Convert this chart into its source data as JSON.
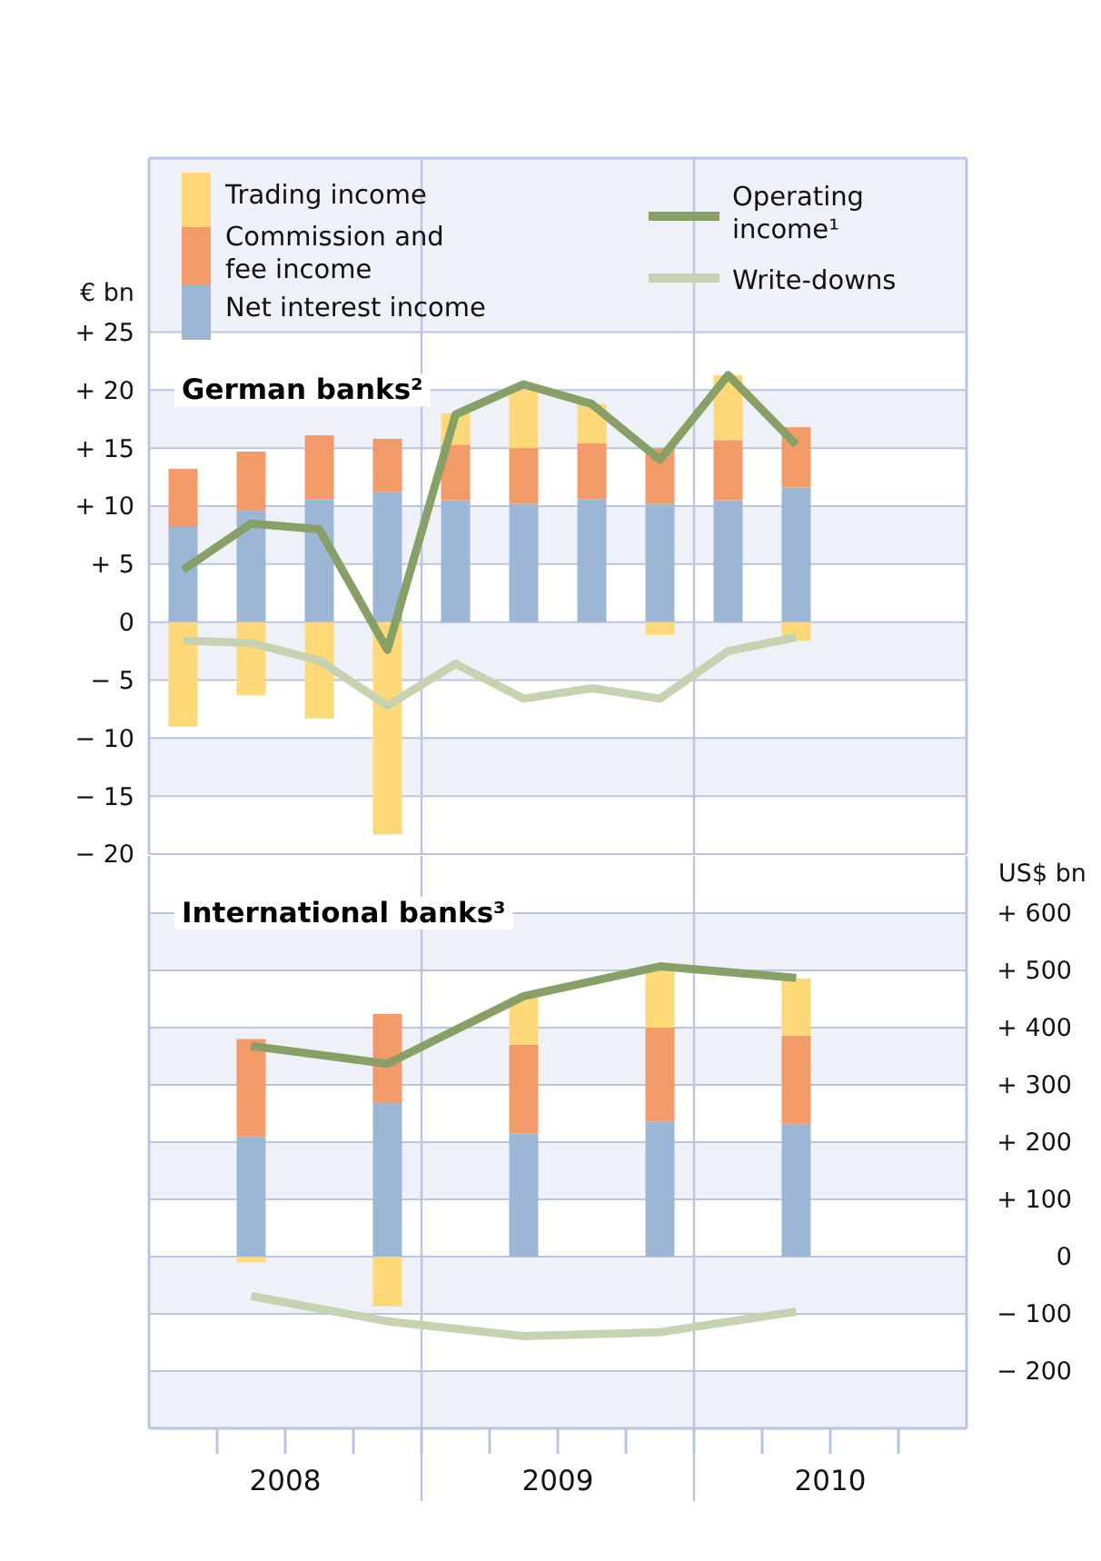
{
  "chart_data": [
    {
      "type": "bar",
      "title": "German banks²",
      "ylabel": "€ bn",
      "stacked": true,
      "legend": "top",
      "grid": "y",
      "tick_labels": "y",
      "xlim": [
        2008,
        2011
      ],
      "ylim": [
        -20,
        40
      ],
      "yticks": [
        {
          "value": -20,
          "label": "− 20"
        },
        {
          "value": -15,
          "label": "− 15"
        },
        {
          "value": -10,
          "label": "− 10"
        },
        {
          "value": -5,
          "label": "− 5"
        },
        0,
        {
          "value": 5,
          "label": "+ 5"
        },
        {
          "value": 10,
          "label": "+ 10"
        },
        {
          "value": 15,
          "label": "+ 15"
        },
        {
          "value": 20,
          "label": "+ 20"
        },
        {
          "value": 25,
          "label": "+ 25"
        }
      ],
      "x": [
        2008.125,
        2008.375,
        2008.625,
        2008.875,
        2009.125,
        2009.375,
        2009.625,
        2009.875,
        2010.125,
        2010.375
      ],
      "ref_lines": [
        {
          "axis": "x",
          "value": 2009,
          "label": null
        },
        {
          "axis": "x",
          "value": 2010,
          "label": null
        }
      ],
      "series": [
        {
          "name": "Net interest income",
          "color": "#9cb7d6",
          "values": [
            8.2,
            9.6,
            10.6,
            11.2,
            10.5,
            10.2,
            10.6,
            10.2,
            10.5,
            11.6
          ]
        },
        {
          "name": "Commission and fee income",
          "color": "#f29a68",
          "values": [
            5.0,
            5.1,
            5.5,
            4.6,
            4.8,
            4.8,
            4.8,
            4.8,
            5.2,
            5.2
          ]
        },
        {
          "name": "Trading income",
          "color": "#ffd978",
          "values": [
            -9.0,
            -6.3,
            -8.3,
            -18.3,
            2.7,
            5.0,
            3.4,
            -1.1,
            5.6,
            -1.6
          ]
        },
        {
          "name": "Operating income¹",
          "type": "line",
          "color": "#87a066",
          "values": [
            4.5,
            8.5,
            8.0,
            -2.4,
            17.9,
            20.5,
            18.8,
            14.0,
            21.3,
            15.3
          ]
        },
        {
          "name": "Write-downs",
          "type": "line",
          "color": "#c6d3b0",
          "values": [
            -1.6,
            -1.8,
            -3.3,
            -7.2,
            -3.6,
            -6.6,
            -5.7,
            -6.6,
            -2.5,
            -1.3
          ]
        }
      ]
    },
    {
      "type": "bar",
      "title": "International banks³",
      "ylabel": "US$ bn",
      "stacked": true,
      "grid": "y",
      "xlim": [
        2008,
        2011
      ],
      "xticks": [
        {
          "value": 2008.25,
          "label": null
        },
        {
          "value": 2008.5,
          "label": "2008"
        },
        {
          "value": 2008.75,
          "label": null
        },
        {
          "value": 2009,
          "label": null
        },
        {
          "value": 2009.25,
          "label": null
        },
        {
          "value": 2009.5,
          "label": "2009"
        },
        {
          "value": 2009.75,
          "label": null
        },
        {
          "value": 2010,
          "label": null
        },
        {
          "value": 2010.25,
          "label": null
        },
        {
          "value": 2010.5,
          "label": "2010"
        },
        {
          "value": 2010.75,
          "label": null
        }
      ],
      "ylim": [
        -300,
        700
      ],
      "yticks": [
        {
          "value": -200,
          "label": "− 200"
        },
        {
          "value": -100,
          "label": "− 100"
        },
        0,
        {
          "value": 100,
          "label": "+ 100"
        },
        {
          "value": 200,
          "label": "+ 200"
        },
        {
          "value": 300,
          "label": "+ 300"
        },
        {
          "value": 400,
          "label": "+ 400"
        },
        {
          "value": 500,
          "label": "+ 500"
        },
        {
          "value": 600,
          "label": "+ 600"
        }
      ],
      "x": [
        2008.375,
        2008.875,
        2009.375,
        2009.875,
        2010.375
      ],
      "ref_lines": [
        {
          "axis": "x",
          "value": 2009,
          "label": null
        },
        {
          "axis": "x",
          "value": 2010,
          "label": null
        }
      ],
      "series": [
        {
          "color": "#9cb7d6",
          "values": [
            210,
            268,
            215,
            236,
            232
          ]
        },
        {
          "color": "#f29a68",
          "values": [
            170,
            156,
            155,
            164,
            154
          ]
        },
        {
          "color": "#ffd978",
          "values": [
            -10,
            -87,
            83,
            104,
            100
          ]
        },
        {
          "type": "line",
          "color": "#87a066",
          "values": [
            368,
            337,
            455,
            507,
            487
          ]
        },
        {
          "type": "line",
          "color": "#c6d3b0",
          "values": [
            -69,
            -113,
            -139,
            -132,
            -96
          ]
        }
      ]
    }
  ]
}
